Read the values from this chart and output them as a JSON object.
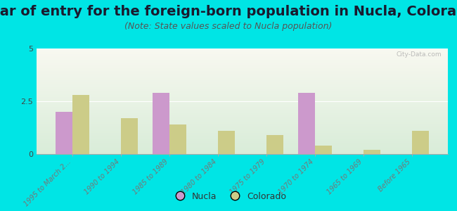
{
  "title": "Year of entry for the foreign-born population in Nucla, Colorado",
  "subtitle": "(Note: State values scaled to Nucla population)",
  "categories": [
    "1995 to March 2...",
    "1990 to 1994",
    "1985 to 1989",
    "1980 to 1984",
    "1975 to 1979",
    "1970 to 1974",
    "1965 to 1969",
    "Before 1965"
  ],
  "nucla_values": [
    2.0,
    0.0,
    2.9,
    0.0,
    0.0,
    2.9,
    0.0,
    0.0
  ],
  "colorado_values": [
    2.8,
    1.7,
    1.4,
    1.1,
    0.9,
    0.4,
    0.2,
    1.1
  ],
  "nucla_color": "#cc99cc",
  "colorado_color": "#cccc88",
  "background_color": "#00e5e5",
  "ylim": [
    0,
    5
  ],
  "yticks": [
    0,
    2.5,
    5
  ],
  "bar_width": 0.35,
  "title_fontsize": 14,
  "subtitle_fontsize": 9,
  "watermark": "City-Data.com",
  "legend_labels": [
    "Nucla",
    "Colorado"
  ]
}
